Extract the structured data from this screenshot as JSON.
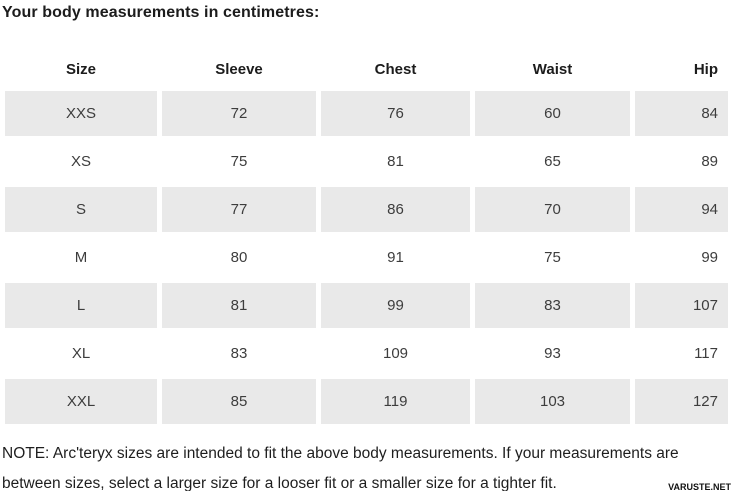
{
  "title": "Your body measurements in centimetres:",
  "table": {
    "columns": [
      "Size",
      "Sleeve",
      "Chest",
      "Waist",
      "Hip"
    ],
    "rows": [
      {
        "cells": [
          "XXS",
          "72",
          "76",
          "60",
          "84"
        ]
      },
      {
        "cells": [
          "XS",
          "75",
          "81",
          "65",
          "89"
        ]
      },
      {
        "cells": [
          "S",
          "77",
          "86",
          "70",
          "94"
        ]
      },
      {
        "cells": [
          "M",
          "80",
          "91",
          "75",
          "99"
        ]
      },
      {
        "cells": [
          "L",
          "81",
          "99",
          "83",
          "107"
        ]
      },
      {
        "cells": [
          "XL",
          "83",
          "109",
          "93",
          "117"
        ]
      },
      {
        "cells": [
          "XXL",
          "85",
          "119",
          "103",
          "127"
        ]
      }
    ]
  },
  "note": {
    "line1": "NOTE: Arc'teryx sizes are intended to fit the above body measurements. If your measurements are",
    "line2": "between sizes, select a larger size for a looser fit or a smaller size for a tighter fit."
  },
  "watermark": "VARUSTE.NET",
  "colors": {
    "stripe": "#e9e9e9",
    "heading_text": "#1c1c1c",
    "value_text": "#3d3d3d"
  },
  "chart_data": {
    "type": "table",
    "title": "Your body measurements in centimetres:",
    "columns": [
      "Size",
      "Sleeve",
      "Chest",
      "Waist",
      "Hip"
    ],
    "rows": [
      [
        "XXS",
        72,
        76,
        60,
        84
      ],
      [
        "XS",
        75,
        81,
        65,
        89
      ],
      [
        "S",
        77,
        86,
        70,
        94
      ],
      [
        "M",
        80,
        91,
        75,
        99
      ],
      [
        "L",
        81,
        99,
        83,
        107
      ],
      [
        "XL",
        83,
        109,
        93,
        117
      ],
      [
        "XXL",
        85,
        119,
        103,
        127
      ]
    ],
    "shaded_rows": [
      "XXS",
      "S",
      "L",
      "XXL"
    ],
    "note": "NOTE: Arc'teryx sizes are intended to fit the above body measurements. If your measurements are between sizes, select a larger size for a looser fit or a smaller size for a tighter fit."
  }
}
